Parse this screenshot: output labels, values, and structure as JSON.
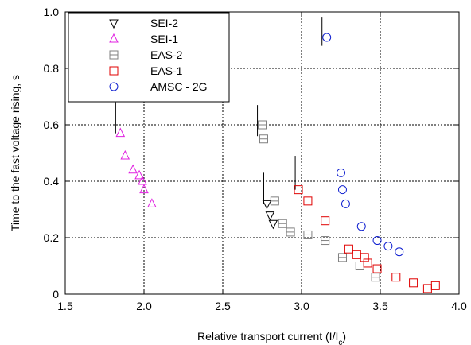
{
  "chart_data": {
    "type": "scatter",
    "xlabel": "Relative transport current (I/I",
    "xlabel_sub": "c",
    "xlabel_tail": ")",
    "ylabel": "Time to the fast voltage rising, s",
    "xlim": [
      1.5,
      4.0
    ],
    "ylim": [
      0.0,
      1.0
    ],
    "x_ticks": [
      "1.5",
      "2.0",
      "2.5",
      "3.0",
      "3.5",
      "4.0"
    ],
    "y_ticks": [
      "0",
      "0.2",
      "0.4",
      "0.6",
      "0.8",
      "1.0"
    ],
    "grid": true,
    "legend_position": "top-left",
    "series": [
      {
        "name": "SEI-2",
        "marker": "triangle-down",
        "color": "#000000",
        "points": [
          [
            2.78,
            0.32
          ],
          [
            2.8,
            0.28
          ],
          [
            2.82,
            0.25
          ]
        ]
      },
      {
        "name": "SEI-1",
        "marker": "triangle-up",
        "color": "#e020e0",
        "points": [
          [
            1.85,
            0.57
          ],
          [
            1.88,
            0.49
          ],
          [
            1.93,
            0.44
          ],
          [
            1.97,
            0.42
          ],
          [
            1.99,
            0.4
          ],
          [
            2.0,
            0.37
          ],
          [
            2.05,
            0.32
          ]
        ]
      },
      {
        "name": "EAS-2",
        "marker": "square",
        "color": "#808080",
        "points": [
          [
            2.75,
            0.6
          ],
          [
            2.76,
            0.55
          ],
          [
            2.83,
            0.33
          ],
          [
            2.88,
            0.25
          ],
          [
            2.93,
            0.22
          ],
          [
            3.04,
            0.21
          ],
          [
            3.15,
            0.19
          ],
          [
            3.26,
            0.13
          ],
          [
            3.37,
            0.1
          ],
          [
            3.47,
            0.06
          ]
        ]
      },
      {
        "name": "EAS-1",
        "marker": "square",
        "color": "#e00000",
        "points": [
          [
            2.98,
            0.37
          ],
          [
            3.04,
            0.33
          ],
          [
            3.15,
            0.26
          ],
          [
            3.3,
            0.16
          ],
          [
            3.35,
            0.14
          ],
          [
            3.4,
            0.13
          ],
          [
            3.42,
            0.11
          ],
          [
            3.48,
            0.09
          ],
          [
            3.6,
            0.06
          ],
          [
            3.71,
            0.04
          ],
          [
            3.8,
            0.02
          ],
          [
            3.85,
            0.03
          ]
        ]
      },
      {
        "name": "AMSC - 2G",
        "marker": "circle",
        "color": "#1020d0",
        "points": [
          [
            3.16,
            0.91
          ],
          [
            3.25,
            0.43
          ],
          [
            3.26,
            0.37
          ],
          [
            3.28,
            0.32
          ],
          [
            3.38,
            0.24
          ],
          [
            3.48,
            0.19
          ],
          [
            3.55,
            0.17
          ],
          [
            3.62,
            0.15
          ]
        ]
      }
    ],
    "annotations": [
      {
        "type": "vline",
        "x": 1.82,
        "y_from": 0.57,
        "y_to": 0.68
      },
      {
        "type": "vline",
        "x": 2.72,
        "y_from": 0.56,
        "y_to": 0.67
      },
      {
        "type": "vline",
        "x": 2.76,
        "y_from": 0.32,
        "y_to": 0.43
      },
      {
        "type": "vline",
        "x": 2.96,
        "y_from": 0.37,
        "y_to": 0.49
      },
      {
        "type": "vline",
        "x": 3.13,
        "y_from": 0.88,
        "y_to": 0.98
      }
    ]
  }
}
